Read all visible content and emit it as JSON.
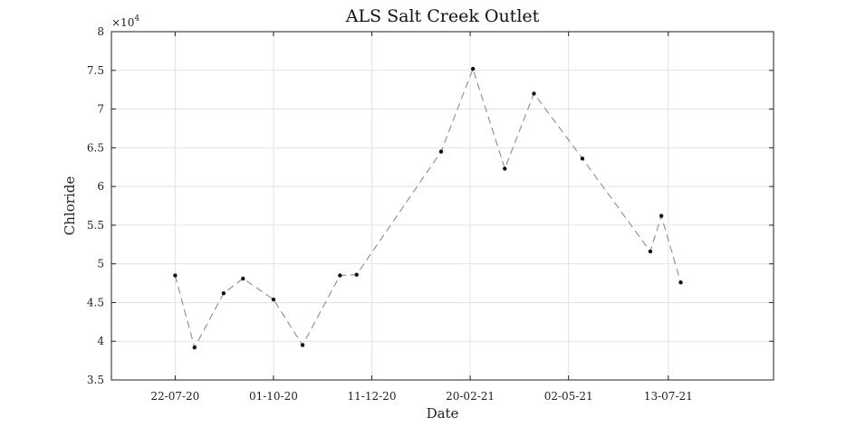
{
  "chart_data": {
    "type": "line",
    "title": "ALS Salt Creek Outlet",
    "xlabel": "Date",
    "ylabel": "Chloride",
    "y_multiplier_label": "×10",
    "y_multiplier_exponent": "4",
    "ylim": [
      35000,
      80000
    ],
    "y_ticks": [
      35000,
      40000,
      45000,
      50000,
      55000,
      60000,
      65000,
      70000,
      75000,
      80000
    ],
    "y_tick_labels": [
      "3.5",
      "4",
      "4.5",
      "5",
      "5.5",
      "6",
      "6.5",
      "7",
      "7.5",
      "8"
    ],
    "xlim": [
      "2020-06-06",
      "2021-09-27"
    ],
    "x_ticks": [
      "2020-07-22",
      "2020-10-01",
      "2020-12-11",
      "2021-02-20",
      "2021-05-02",
      "2021-07-13"
    ],
    "x_tick_labels": [
      "22-07-20",
      "01-10-20",
      "11-12-20",
      "20-02-21",
      "02-05-21",
      "13-07-21"
    ],
    "grid": true,
    "series": [
      {
        "line_style": "dashed",
        "line_color": "#8c8c8c",
        "marker_color": "#111111",
        "x": [
          "2020-07-22",
          "2020-08-05",
          "2020-08-26",
          "2020-09-09",
          "2020-10-01",
          "2020-10-22",
          "2020-11-18",
          "2020-11-30",
          "2021-01-30",
          "2021-02-22",
          "2021-03-17",
          "2021-04-07",
          "2021-05-12",
          "2021-06-30",
          "2021-07-08",
          "2021-07-22"
        ],
        "y": [
          48500,
          39200,
          46200,
          48100,
          45400,
          39500,
          48500,
          48600,
          64500,
          75200,
          62300,
          72000,
          63600,
          51600,
          56200,
          47600
        ]
      }
    ]
  }
}
